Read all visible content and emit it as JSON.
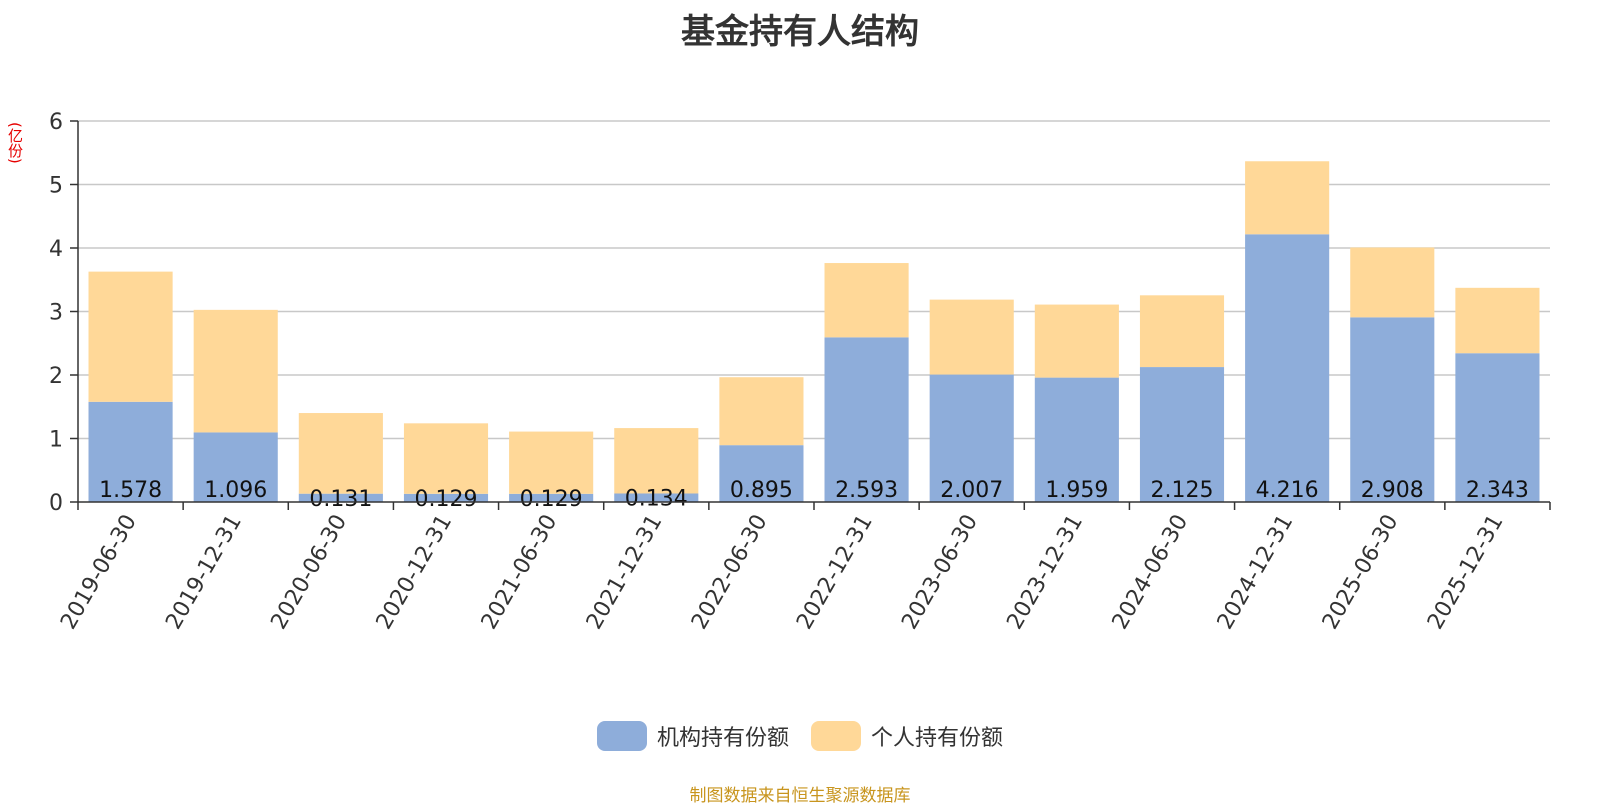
{
  "chart_data": {
    "type": "bar",
    "stacked": true,
    "title": "基金持有人结构",
    "unit": "(亿份)",
    "categories": [
      "2019-06-30",
      "2019-12-31",
      "2020-06-30",
      "2020-12-31",
      "2021-06-30",
      "2021-12-31",
      "2022-06-30",
      "2022-12-31",
      "2023-06-30",
      "2023-12-31",
      "2024-06-30",
      "2024-12-31",
      "2025-06-30",
      "2025-12-31"
    ],
    "series": [
      {
        "name": "机构持有份额",
        "color": "#8eadda",
        "values": [
          1.578,
          1.096,
          0.131,
          0.129,
          0.129,
          0.134,
          0.895,
          2.593,
          2.007,
          1.959,
          2.125,
          4.216,
          2.908,
          2.343
        ]
      },
      {
        "name": "个人持有份额",
        "color": "#ffd898",
        "values": [
          2.05,
          1.93,
          1.27,
          1.11,
          0.98,
          1.03,
          1.07,
          1.17,
          1.18,
          1.15,
          1.13,
          1.15,
          1.1,
          1.03
        ]
      }
    ],
    "data_labels_series": 0,
    "ylim": [
      0,
      6
    ],
    "yticks": [
      0,
      1,
      2,
      3,
      4,
      5,
      6
    ],
    "grid": true,
    "legend_position": "bottom"
  },
  "source_text": "制图数据来自恒生聚源数据库"
}
